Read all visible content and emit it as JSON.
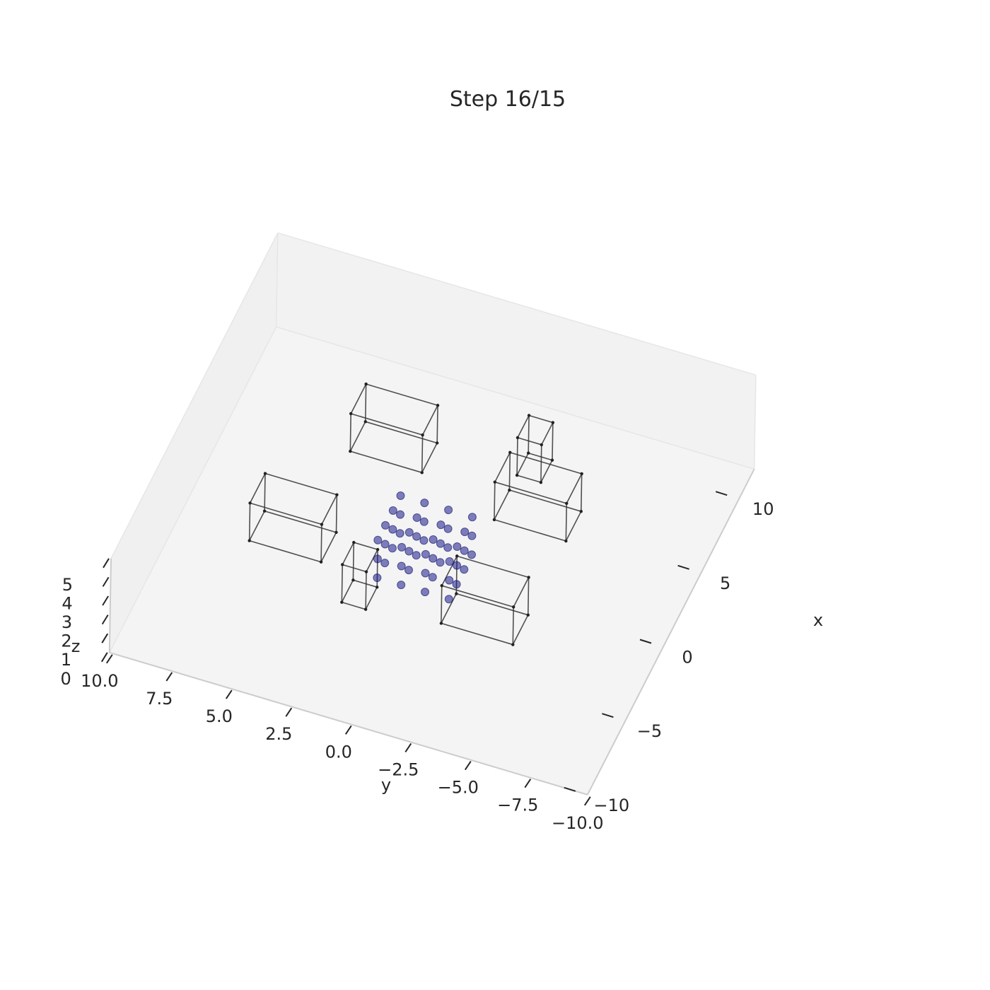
{
  "chart_data": {
    "type": "scatter",
    "projection": "3d",
    "title": "Step 16/15",
    "xlabel": "x",
    "ylabel": "y",
    "zlabel": "z",
    "xlim": [
      -10,
      12
    ],
    "ylim": [
      -10,
      10
    ],
    "zlim": [
      0,
      5
    ],
    "x_ticks": [
      "10",
      "5",
      "0",
      "−5",
      "−10"
    ],
    "y_ticks": [
      "10.0",
      "7.5",
      "5.0",
      "2.5",
      "0.0",
      "−2.5",
      "−5.0",
      "−7.5",
      "−10.0"
    ],
    "z_ticks": [
      "5",
      "4",
      "3",
      "2",
      "1",
      "0"
    ],
    "grid": false,
    "colors": {
      "points": "#1a1a8c",
      "boxes": "#333333",
      "pane_floor": "#f4f4f4",
      "pane_wall": "#f0f0f0",
      "axis_line": "#cccccc"
    },
    "points": {
      "xs": [
        -1.5,
        -0.5,
        0.5,
        1.5
      ],
      "ys": [
        -1.5,
        -0.5,
        0.5,
        1.5
      ],
      "zs": [
        0.5,
        1.5,
        2.5
      ]
    },
    "boxes": [
      {
        "x": [
          6,
          8
        ],
        "y": [
          2,
          5
        ],
        "z": [
          0,
          2
        ]
      },
      {
        "x": [
          7.5,
          9
        ],
        "y": [
          -2.5,
          -1.5
        ],
        "z": [
          0,
          2
        ]
      },
      {
        "x": [
          4.5,
          6.5
        ],
        "y": [
          -4.5,
          -1.5
        ],
        "z": [
          0,
          2
        ]
      },
      {
        "x": [
          -1,
          1
        ],
        "y": [
          4,
          7
        ],
        "z": [
          0,
          2
        ]
      },
      {
        "x": [
          -2.5,
          -0.5
        ],
        "y": [
          -4.5,
          -1.5
        ],
        "z": [
          0,
          2
        ]
      },
      {
        "x": [
          -3,
          -1.5
        ],
        "y": [
          1.5,
          2.5
        ],
        "z": [
          0,
          2
        ]
      }
    ]
  }
}
